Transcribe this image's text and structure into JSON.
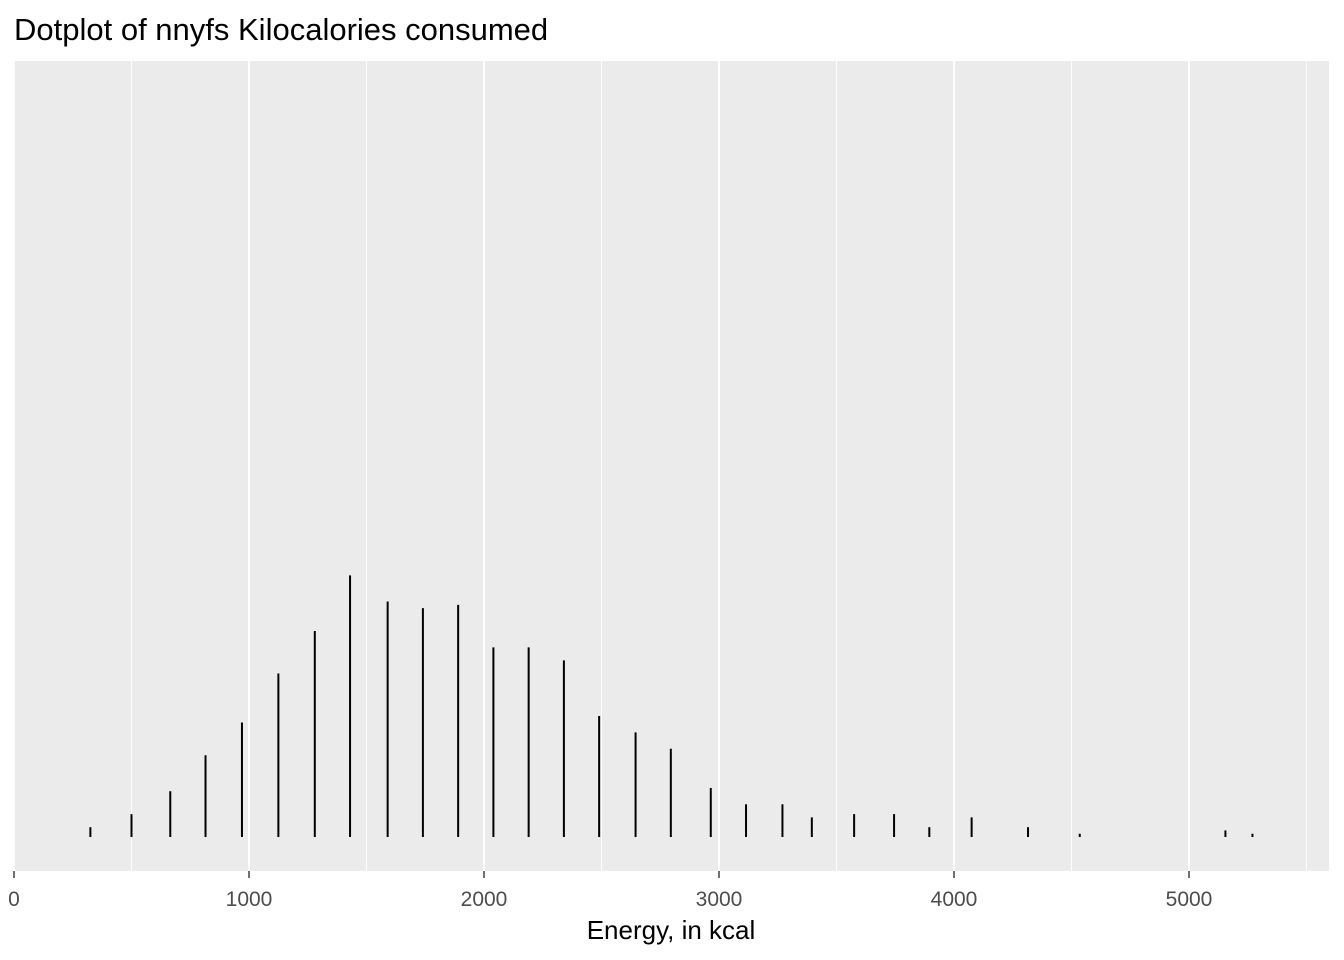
{
  "chart_data": {
    "type": "dotplot",
    "title": "Dotplot of nnyfs Kilocalories consumed",
    "xlabel": "Energy, in kcal",
    "ylabel": "",
    "xlim": [
      0,
      5600
    ],
    "x_ticks": [
      0,
      1000,
      2000,
      3000,
      4000,
      5000
    ],
    "x_tick_labels": [
      "0",
      "1000",
      "2000",
      "3000",
      "4000",
      "5000"
    ],
    "y_axis_visible": false,
    "grid": true,
    "background_color": "#ebebeb",
    "grid_color": "#ffffff",
    "mark_color": "#000000",
    "bins": [
      {
        "x": 325,
        "count": 3
      },
      {
        "x": 500,
        "count": 7
      },
      {
        "x": 665,
        "count": 14
      },
      {
        "x": 815,
        "count": 25
      },
      {
        "x": 970,
        "count": 35
      },
      {
        "x": 1125,
        "count": 50
      },
      {
        "x": 1280,
        "count": 63
      },
      {
        "x": 1430,
        "count": 80
      },
      {
        "x": 1590,
        "count": 72
      },
      {
        "x": 1740,
        "count": 70
      },
      {
        "x": 1890,
        "count": 71
      },
      {
        "x": 2040,
        "count": 58
      },
      {
        "x": 2190,
        "count": 58
      },
      {
        "x": 2340,
        "count": 54
      },
      {
        "x": 2490,
        "count": 37
      },
      {
        "x": 2645,
        "count": 32
      },
      {
        "x": 2795,
        "count": 27
      },
      {
        "x": 2965,
        "count": 15
      },
      {
        "x": 3115,
        "count": 10
      },
      {
        "x": 3270,
        "count": 10
      },
      {
        "x": 3395,
        "count": 6
      },
      {
        "x": 3575,
        "count": 7
      },
      {
        "x": 3745,
        "count": 7
      },
      {
        "x": 3895,
        "count": 3
      },
      {
        "x": 4075,
        "count": 6
      },
      {
        "x": 4315,
        "count": 3
      },
      {
        "x": 4535,
        "count": 1
      },
      {
        "x": 5155,
        "count": 2
      },
      {
        "x": 5270,
        "count": 1
      }
    ]
  }
}
